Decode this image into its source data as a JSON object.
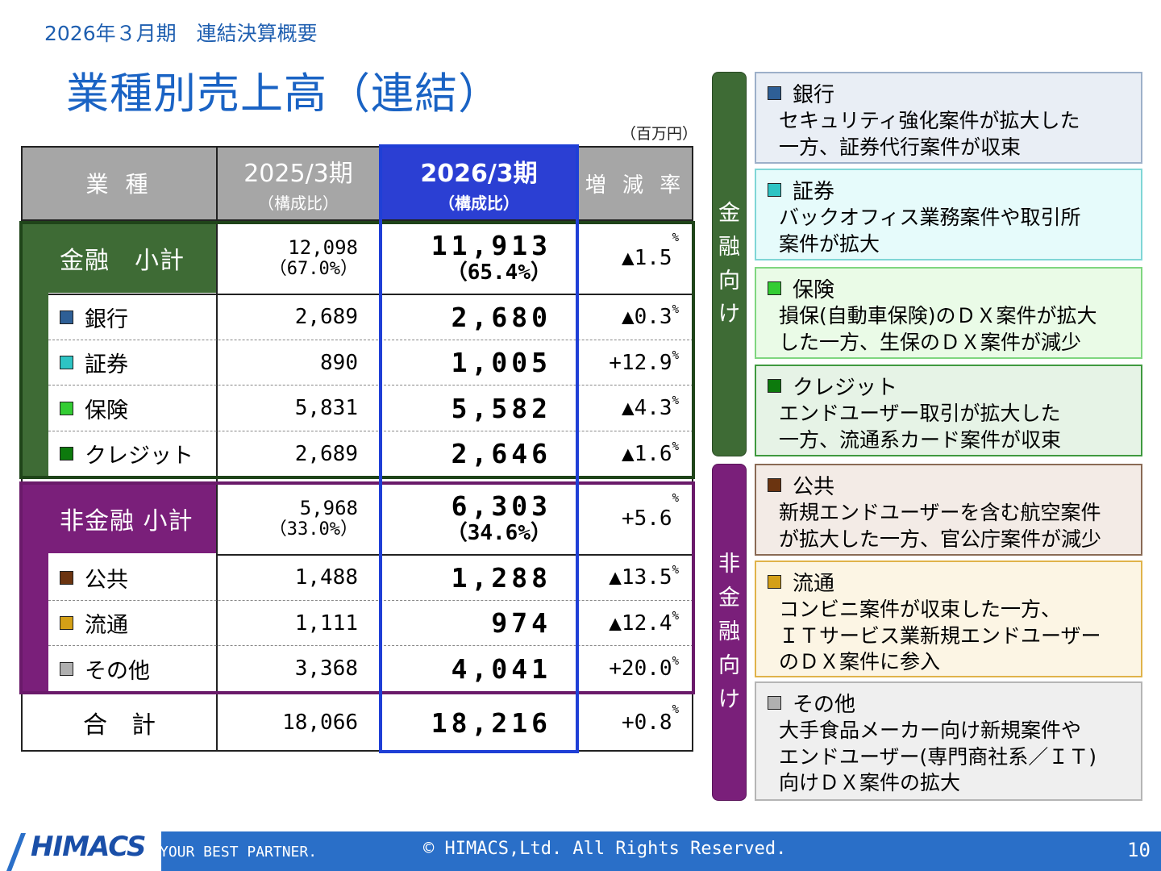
{
  "header": {
    "subtitle": "2026年３月期　連結決算概要",
    "title": "業種別売上高（連結）",
    "unit": "（百万円）"
  },
  "table": {
    "headers": {
      "category": "業 種",
      "prev_year": "2025/3期",
      "prev_sub": "（構成比）",
      "cur_year": "2026/3期",
      "cur_sub": "（構成比）",
      "rate": "増 減 率"
    },
    "finance_subtotal": {
      "label": "金融　小計",
      "prev": "12,098",
      "prev_ratio": "（67.0%）",
      "cur": "11,913",
      "cur_ratio": "（65.4%）",
      "rate": "▲1.5",
      "rate_unit": "%"
    },
    "finance_rows": [
      {
        "label": "銀行",
        "color": "#2e5f96",
        "prev": "2,689",
        "cur": "2,680",
        "rate": "▲0.3",
        "rate_unit": "%"
      },
      {
        "label": "証券",
        "color": "#2ec4c4",
        "prev": "890",
        "cur": "1,005",
        "rate": "+12.9",
        "rate_unit": "%"
      },
      {
        "label": "保険",
        "color": "#33cc33",
        "prev": "5,831",
        "cur": "5,582",
        "rate": "▲4.3",
        "rate_unit": "%"
      },
      {
        "label": "クレジット",
        "color": "#0d7a0d",
        "prev": "2,689",
        "cur": "2,646",
        "rate": "▲1.6",
        "rate_unit": "%"
      }
    ],
    "nonfinance_subtotal": {
      "label": "非金融 小計",
      "prev": "5,968",
      "prev_ratio": "（33.0%）",
      "cur": "6,303",
      "cur_ratio": "（34.6%）",
      "rate": "+5.6",
      "rate_unit": "%"
    },
    "nonfinance_rows": [
      {
        "label": "公共",
        "color": "#6b3410",
        "prev": "1,488",
        "cur": "1,288",
        "rate": "▲13.5",
        "rate_unit": "%"
      },
      {
        "label": "流通",
        "color": "#d4a017",
        "prev": "1,111",
        "cur": "974",
        "rate": "▲12.4",
        "rate_unit": "%"
      },
      {
        "label": "その他",
        "color": "#b0b0b0",
        "prev": "3,368",
        "cur": "4,041",
        "rate": "+20.0",
        "rate_unit": "%"
      }
    ],
    "total": {
      "label": "合　計",
      "prev": "18,066",
      "cur": "18,216",
      "rate": "+0.8",
      "rate_unit": "%"
    }
  },
  "side": {
    "finance_bar": "金融向け",
    "nonfinance_bar": "非金融向け",
    "notes": [
      {
        "title": "銀行",
        "color": "#2e5f96",
        "lines": [
          "セキュリティ強化案件が拡大した",
          "一方、証券代行案件が収束"
        ]
      },
      {
        "title": "証券",
        "color": "#2ec4c4",
        "lines": [
          "バックオフィス業務案件や取引所",
          "案件が拡大"
        ]
      },
      {
        "title": "保険",
        "color": "#33cc33",
        "lines": [
          "損保(自動車保険)のＤＸ案件が拡大",
          "した一方、生保のＤＸ案件が減少"
        ]
      },
      {
        "title": "クレジット",
        "color": "#0d7a0d",
        "lines": [
          "エンドユーザー取引が拡大した",
          "一方、流通系カード案件が収束"
        ]
      },
      {
        "title": "公共",
        "color": "#6b3410",
        "lines": [
          "新規エンドユーザーを含む航空案件",
          "が拡大した一方、官公庁案件が減少"
        ]
      },
      {
        "title": "流通",
        "color": "#d4a017",
        "lines": [
          "コンビニ案件が収束した一方、",
          "ＩＴサービス業新規エンドユーザー",
          "のＤＸ案件に参入"
        ]
      },
      {
        "title": "その他",
        "color": "#b0b0b0",
        "lines": [
          "大手食品メーカー向け新規案件や",
          "エンドユーザー(専門商社系／ＩＴ)",
          "向けＤＸ案件の拡大"
        ]
      }
    ]
  },
  "footer": {
    "logo": "HIMACS",
    "tagline": "YOUR BEST PARTNER.",
    "copyright": "© HIMACS,Ltd. All Rights Reserved.",
    "page": "10"
  }
}
